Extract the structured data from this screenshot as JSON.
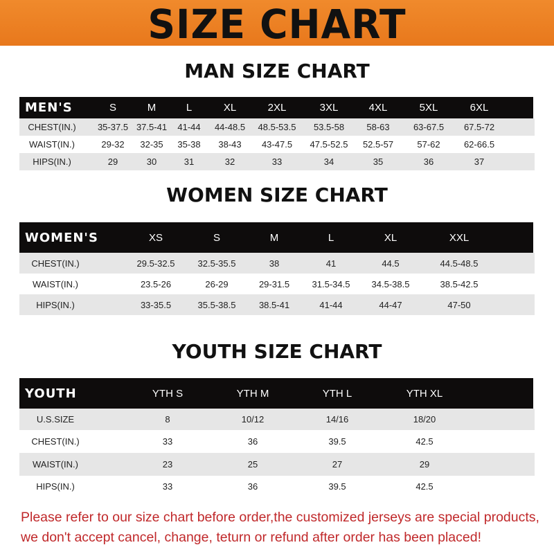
{
  "banner": {
    "title": "SIZE CHART"
  },
  "men": {
    "title": "MAN SIZE CHART",
    "header": [
      "MEN'S",
      "S",
      "M",
      "L",
      "XL",
      "2XL",
      "3XL",
      "4XL",
      "5XL",
      "6XL"
    ],
    "rows": [
      [
        "CHEST(IN.)",
        "35-37.5",
        "37.5-41",
        "41-44",
        "44-48.5",
        "48.5-53.5",
        "53.5-58",
        "58-63",
        "63-67.5",
        "67.5-72"
      ],
      [
        "WAIST(IN.)",
        "29-32",
        "32-35",
        "35-38",
        "38-43",
        "43-47.5",
        "47.5-52.5",
        "52.5-57",
        "57-62",
        "62-66.5"
      ],
      [
        "HIPS(IN.)",
        "29",
        "30",
        "31",
        "32",
        "33",
        "34",
        "35",
        "36",
        "37"
      ]
    ]
  },
  "women": {
    "title": "WOMEN SIZE CHART",
    "header": [
      "WOMEN'S",
      "XS",
      "S",
      "M",
      "L",
      "XL",
      "XXL"
    ],
    "rows": [
      [
        "CHEST(IN.)",
        "29.5-32.5",
        "32.5-35.5",
        "38",
        "41",
        "44.5",
        "44.5-48.5"
      ],
      [
        "WAIST(IN.)",
        "23.5-26",
        "26-29",
        "29-31.5",
        "31.5-34.5",
        "34.5-38.5",
        "38.5-42.5"
      ],
      [
        "HIPS(IN.)",
        "33-35.5",
        "35.5-38.5",
        "38.5-41",
        "41-44",
        "44-47",
        "47-50"
      ]
    ]
  },
  "youth": {
    "title": "YOUTH SIZE CHART",
    "header": [
      "YOUTH",
      "YTH S",
      "YTH M",
      "YTH L",
      "YTH XL"
    ],
    "rows": [
      [
        "U.S.SIZE",
        "8",
        "10/12",
        "14/16",
        "18/20"
      ],
      [
        "CHEST(IN.)",
        "33",
        "36",
        "39.5",
        "42.5"
      ],
      [
        "WAIST(IN.)",
        "23",
        "25",
        "27",
        "29"
      ],
      [
        "HIPS(IN.)",
        "33",
        "36",
        "39.5",
        "42.5"
      ]
    ]
  },
  "note": {
    "line1": "Please refer to our size chart before order,the customized jerseys are special products,",
    "line2": "we don't accept cancel, change, teturn or refund after order has been placed!"
  },
  "colors": {
    "banner": "#ec8025",
    "header": "#0e0c0c",
    "stripe": "#e6e6e6",
    "note": "#c0282a"
  }
}
